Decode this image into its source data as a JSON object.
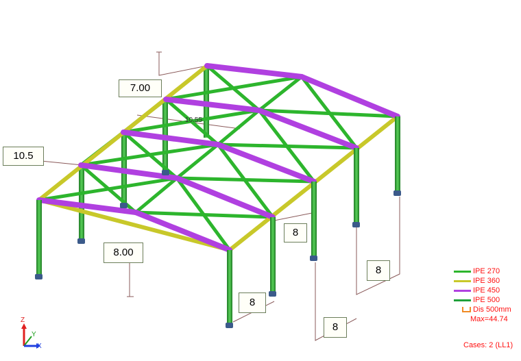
{
  "dimension_labels": {
    "top_height": "7.00",
    "left_width": "10.5",
    "front_height": "8.00",
    "mid_span": "10.55",
    "bay_a": "8",
    "bay_b": "8",
    "bay_c": "8",
    "bay_d": "8"
  },
  "legend": {
    "items": [
      {
        "label": "IPE 270",
        "color": "#2db52d"
      },
      {
        "label": "IPE 360",
        "color": "#c8c82a"
      },
      {
        "label": "IPE 450",
        "color": "#b040e0"
      },
      {
        "label": "IPE 500",
        "color": "#1fa03a"
      }
    ],
    "dis_label": "Dis  500mm",
    "max_label": "Max=44.74"
  },
  "cases_label": "Cases: 2 (LL1)",
  "axis": {
    "x": "X",
    "y": "Y",
    "z": "Z"
  },
  "colors": {
    "column": "#2e9e32",
    "edge_beam": "#c8c82a",
    "rafter": "#b040e0",
    "brace": "#2db52d",
    "support": "#3b5a8a",
    "dimension_line": "#8a5a5a"
  }
}
